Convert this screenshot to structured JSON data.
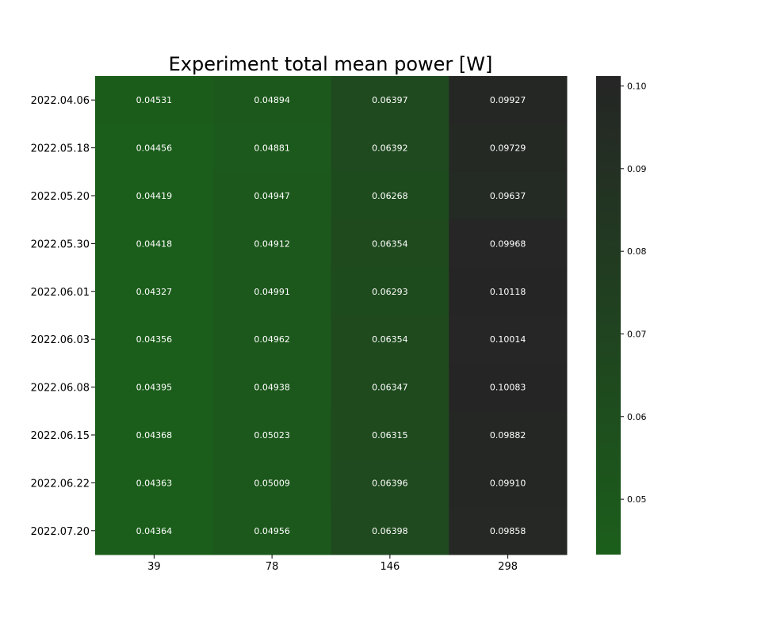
{
  "chart_data": {
    "type": "heatmap",
    "title": "Experiment total mean power [W]",
    "xlabel": "",
    "ylabel": "",
    "x": [
      "39",
      "78",
      "146",
      "298"
    ],
    "y": [
      "2022.04.06",
      "2022.05.18",
      "2022.05.20",
      "2022.05.30",
      "2022.06.01",
      "2022.06.03",
      "2022.06.08",
      "2022.06.15",
      "2022.06.22",
      "2022.07.20"
    ],
    "values": [
      [
        "0.04531",
        "0.04894",
        "0.06397",
        "0.09927"
      ],
      [
        "0.04456",
        "0.04881",
        "0.06392",
        "0.09729"
      ],
      [
        "0.04419",
        "0.04947",
        "0.06268",
        "0.09637"
      ],
      [
        "0.04418",
        "0.04912",
        "0.06354",
        "0.09968"
      ],
      [
        "0.04327",
        "0.04991",
        "0.06293",
        "0.10118"
      ],
      [
        "0.04356",
        "0.04962",
        "0.06354",
        "0.10014"
      ],
      [
        "0.04395",
        "0.04938",
        "0.06347",
        "0.10083"
      ],
      [
        "0.04368",
        "0.05023",
        "0.06315",
        "0.09882"
      ],
      [
        "0.04363",
        "0.05009",
        "0.06396",
        "0.09910"
      ],
      [
        "0.04364",
        "0.04956",
        "0.06398",
        "0.09858"
      ]
    ],
    "colorbar": {
      "range": [
        0.0433,
        0.1012
      ],
      "ticks": [
        "0.05",
        "0.06",
        "0.07",
        "0.08",
        "0.09",
        "0.10"
      ],
      "color_low": "#1b5e1b",
      "color_high": "#252525"
    },
    "annotation_color": "#ffffff"
  }
}
